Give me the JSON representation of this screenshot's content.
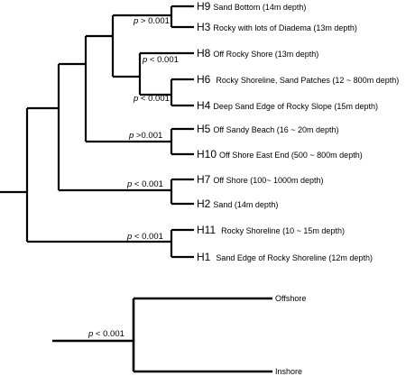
{
  "tree": {
    "leaves": [
      {
        "code": "H9",
        "desc": "Sand Bottom (14m depth)"
      },
      {
        "code": "H3",
        "desc": "Rocky with lots of Diadema (13m depth)"
      },
      {
        "code": "H8",
        "desc": "Off Rocky Shore (13m depth)"
      },
      {
        "code": "H6",
        "desc": "Rocky Shoreline, Sand Patches (12 ~ 800m depth)"
      },
      {
        "code": "H4",
        "desc": "Deep Sand Edge of Rocky Slope (15m depth)"
      },
      {
        "code": "H5",
        "desc": "Off Sandy Beach (16 ~ 20m depth)"
      },
      {
        "code": "H10",
        "desc": "Off Shore East End (500 ~ 800m depth)"
      },
      {
        "code": "H7",
        "desc": "Off Shore (100~ 1000m depth)"
      },
      {
        "code": "H2",
        "desc": "Sand  (14m depth)"
      },
      {
        "code": "H11",
        "desc": "Rocky Shoreline (10 ~ 15m depth)"
      },
      {
        "code": "H1",
        "desc": "Sand Edge of Rocky Shoreline (12m depth)"
      }
    ],
    "pvalues": {
      "h9_h3": {
        "p": "p",
        "rest": " > 0.001"
      },
      "h8_clade": {
        "p": "p",
        "rest": " < 0.001"
      },
      "h6_h4": {
        "p": "p",
        "rest": " < 0.001"
      },
      "h5_h10": {
        "p": "p",
        "rest": " >0.001"
      },
      "h7_h2": {
        "p": "p",
        "rest": " < 0.001"
      },
      "h11_h1": {
        "p": "p",
        "rest": " < 0.001"
      }
    }
  },
  "bottom_tree": {
    "leaves": [
      "Offshore",
      "Inshore"
    ],
    "pvalue": {
      "p": "p",
      "rest": " < 0.001"
    }
  }
}
